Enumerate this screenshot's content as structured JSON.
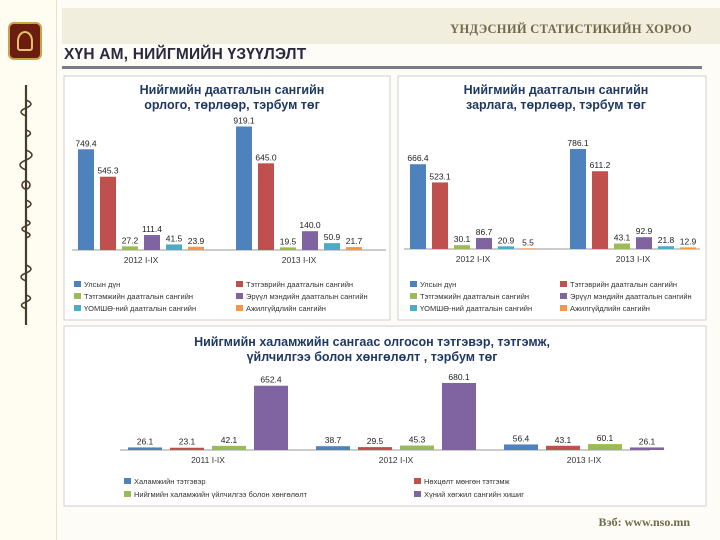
{
  "header": {
    "org": "ҮНДЭСНИЙ СТАТИСТИКИЙН ХОРОО",
    "title": "ХҮН АМ, НИЙГМИЙН ҮЗҮҮЛЭЛТ",
    "footer": "Вэб: www.nso.mn"
  },
  "colors": {
    "blue": "#4f81bd",
    "red": "#c0504d",
    "green": "#9bbb59",
    "purple": "#8064a2",
    "cyan": "#4bacc6",
    "orange": "#f79646"
  },
  "chart_data": [
    {
      "type": "bar",
      "title": [
        "Нийгмийн даатгалын сангийн",
        "орлого, төрлөөр, тэрбум төг"
      ],
      "categories": [
        "2012 I-IX",
        "2013 I-IX"
      ],
      "series": [
        {
          "name": "Улсын дүн",
          "values": [
            749.4,
            919.1
          ]
        },
        {
          "name": "Тэтгэврийн даатгалын сангийн",
          "values": [
            545.3,
            645.0
          ]
        },
        {
          "name": "Тэтгэмжийн даатгалын сангийн",
          "values": [
            27.2,
            19.5
          ]
        },
        {
          "name": "Эрүүл мэндийн даатгалын сангийн",
          "values": [
            111.4,
            140.0
          ]
        },
        {
          "name": "ҮОМШӨ-ний даатгалын сангийн",
          "values": [
            41.5,
            50.9
          ]
        },
        {
          "name": "Ажилгүйдлийн сангийн",
          "values": [
            23.9,
            21.7
          ]
        }
      ],
      "ylim": [
        0,
        950
      ]
    },
    {
      "type": "bar",
      "title": [
        "Нийгмийн даатгалын сангийн",
        "зарлага, төрлөөр, тэрбум төг"
      ],
      "categories": [
        "2012 I-IX",
        "2013 I-IX"
      ],
      "series": [
        {
          "name": "Улсын дүн",
          "values": [
            666.4,
            786.1
          ]
        },
        {
          "name": "Тэтгэврийн даатгалын сангийн",
          "values": [
            523.1,
            611.2
          ]
        },
        {
          "name": "Тэтгэмжийн даатгалын сангийн",
          "values": [
            30.1,
            43.1
          ]
        },
        {
          "name": "Эрүүл мэндийн даатгалын сангийн",
          "values": [
            86.7,
            92.9
          ]
        },
        {
          "name": "ҮОМШӨ-ний даатгалын сангийн",
          "values": [
            20.9,
            21.8
          ]
        },
        {
          "name": "Ажилгүйдлийн сангийн",
          "values": [
            5.5,
            12.9
          ]
        }
      ],
      "ylim": [
        0,
        830
      ]
    },
    {
      "type": "bar",
      "title": [
        "Нийгмийн халамжийн сангаас олгосон тэтгэвэр, тэтгэмж,",
        "үйлчилгээ болон хөнгөлөлт , тэрбум төг"
      ],
      "categories": [
        "2011 I-IX",
        "2012 I-IX",
        "2013 I-IX"
      ],
      "series": [
        {
          "name": "Халамжийн тэтгэвэр",
          "values": [
            26.1,
            38.7,
            56.4
          ]
        },
        {
          "name": "Нөхцөлт мөнгөн тэтгэмж",
          "values": [
            23.1,
            29.5,
            43.1
          ]
        },
        {
          "name": "Нийгмийн халамжийн үйлчилгээ болон хөнгөлөлт",
          "values": [
            42.1,
            45.3,
            60.1
          ]
        },
        {
          "name": "Хүний хөгжил сангийн хишиг",
          "values": [
            652.4,
            680.1,
            26.1
          ]
        }
      ],
      "ylim": [
        0,
        720
      ]
    }
  ]
}
